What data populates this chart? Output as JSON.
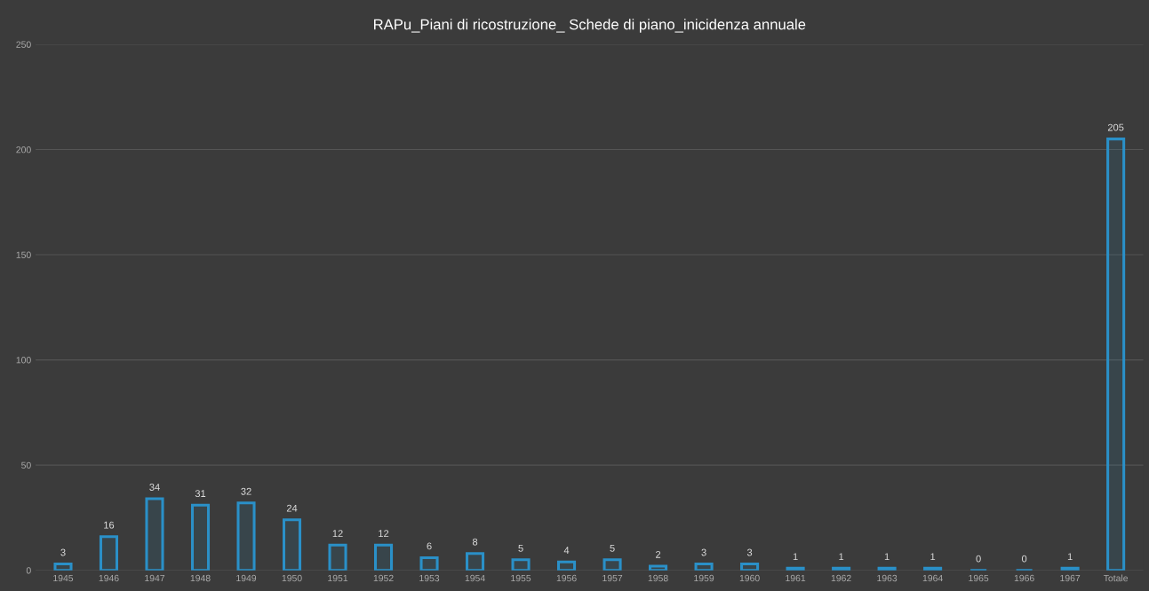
{
  "chart_data": {
    "type": "bar",
    "title": "RAPu_Piani di ricostruzione_ Schede di piano_inicidenza annuale",
    "categories": [
      "1945",
      "1946",
      "1947",
      "1948",
      "1949",
      "1950",
      "1951",
      "1952",
      "1953",
      "1954",
      "1955",
      "1956",
      "1957",
      "1958",
      "1959",
      "1960",
      "1961",
      "1962",
      "1963",
      "1964",
      "1965",
      "1966",
      "1967",
      "Totale"
    ],
    "values": [
      3,
      16,
      34,
      31,
      32,
      24,
      12,
      12,
      6,
      8,
      5,
      4,
      5,
      2,
      3,
      3,
      1,
      1,
      1,
      1,
      0,
      0,
      1,
      205
    ],
    "color": "#2a90c8",
    "ylim": [
      0,
      250
    ],
    "yticks": [
      0,
      50,
      100,
      150,
      200,
      250
    ],
    "grid": "y",
    "data_labels": true
  }
}
